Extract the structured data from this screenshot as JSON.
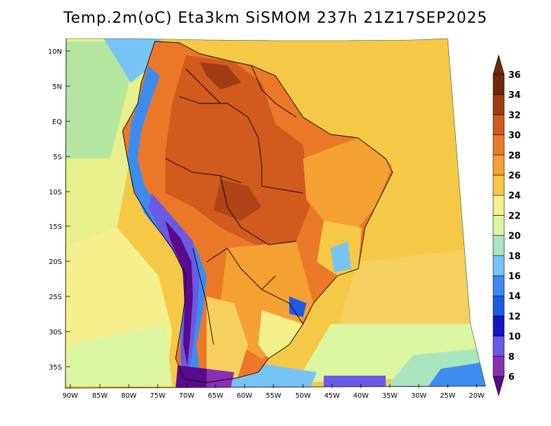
{
  "title": "Temp.2m(oC) Eta3km SiSMOM 237h 21Z17SEP2025",
  "map": {
    "variable": "2 m air temperature",
    "units": "oC",
    "lat_labels": [
      "10N",
      "5N",
      "EQ",
      "5S",
      "10S",
      "15S",
      "20S",
      "25S",
      "30S",
      "35S"
    ],
    "lon_labels": [
      "90W",
      "85W",
      "80W",
      "75W",
      "70W",
      "65W",
      "60W",
      "55W",
      "50W",
      "45W",
      "40W",
      "35W",
      "30W",
      "25W",
      "20W"
    ]
  },
  "colorbar": {
    "labels": [
      "6",
      "8",
      "10",
      "12",
      "14",
      "16",
      "18",
      "20",
      "22",
      "24",
      "26",
      "28",
      "30",
      "32",
      "34",
      "36"
    ],
    "colors": [
      "#5a0a8c",
      "#8c2eb4",
      "#6a5ae6",
      "#1414c8",
      "#1e5ae6",
      "#3c8cf0",
      "#78c3f5",
      "#a8e6c0",
      "#dcf5a0",
      "#f5f08c",
      "#f5c846",
      "#f5a032",
      "#eb7828",
      "#d25a1e",
      "#a03c14",
      "#6e280a"
    ]
  }
}
